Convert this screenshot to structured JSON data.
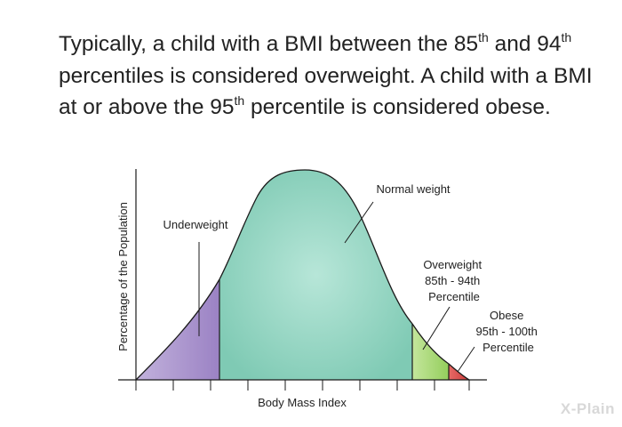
{
  "headline": {
    "seg1": "Typically, a child with a BMI between the 85",
    "sup1": "th",
    "seg2": " and 94",
    "sup2": "th",
    "seg3": " percentiles is considered overweight. A child with a BMI at or above the 95",
    "sup3": "th",
    "seg4": " percentile is considered obese."
  },
  "diagram": {
    "y_axis_label": "Percentage of the Population",
    "x_axis_label": "Body Mass Index",
    "regions": [
      {
        "id": "underweight",
        "lines": [
          "Underweight"
        ],
        "color": "#a48cc8"
      },
      {
        "id": "normal",
        "lines": [
          "Normal weight"
        ],
        "color": "#8ed2bf"
      },
      {
        "id": "overweight",
        "lines": [
          "Overweight",
          "85th - 94th",
          "Percentile"
        ],
        "color": "#a6d870"
      },
      {
        "id": "obese",
        "lines": [
          "Obese",
          "95th - 100th",
          "Percentile"
        ],
        "color": "#e0514f"
      }
    ]
  },
  "watermark": "X-Plain"
}
